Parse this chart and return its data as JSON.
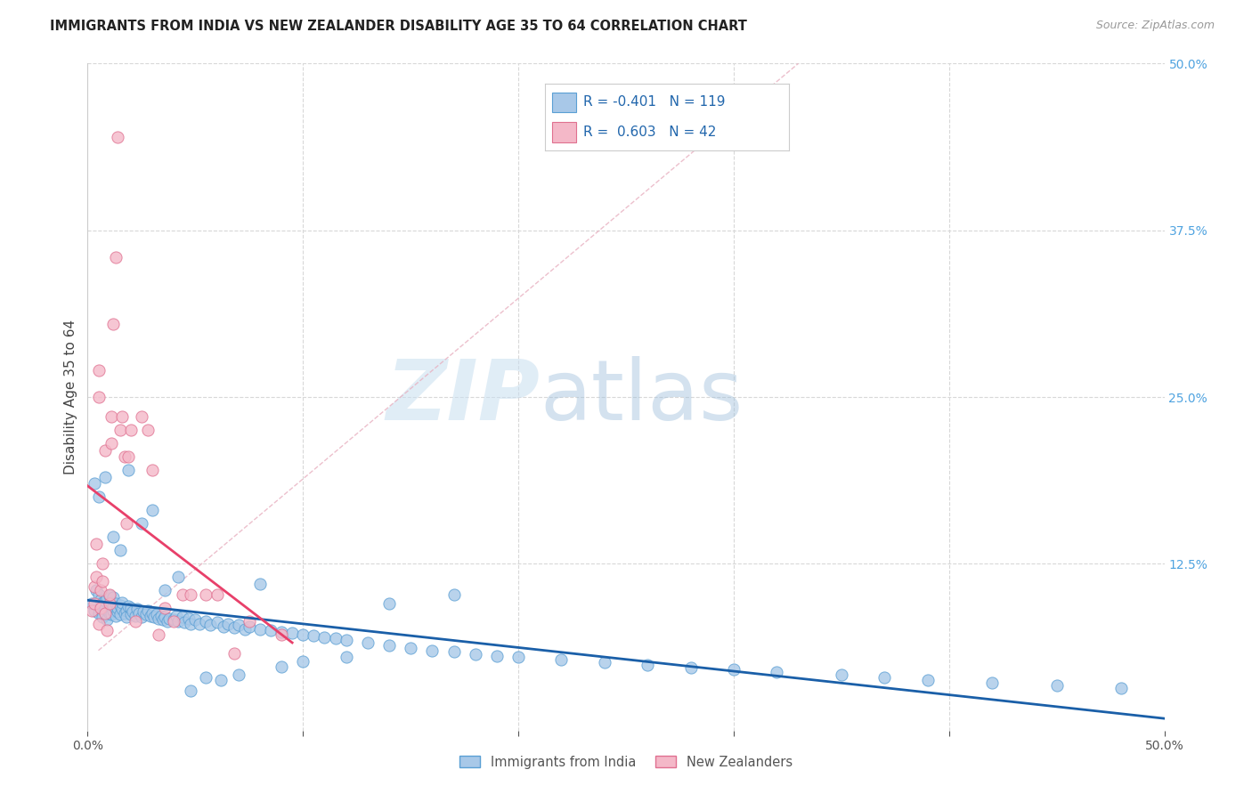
{
  "title": "IMMIGRANTS FROM INDIA VS NEW ZEALANDER DISABILITY AGE 35 TO 64 CORRELATION CHART",
  "source": "Source: ZipAtlas.com",
  "ylabel": "Disability Age 35 to 64",
  "xlim": [
    0.0,
    0.5
  ],
  "ylim": [
    0.0,
    0.5
  ],
  "yticks_right": [
    0.0,
    0.125,
    0.25,
    0.375,
    0.5
  ],
  "legend_blue_R": "-0.401",
  "legend_blue_N": "119",
  "legend_pink_R": "0.603",
  "legend_pink_N": "42",
  "blue_label": "Immigrants from India",
  "pink_label": "New Zealanders",
  "blue_color": "#a8c8e8",
  "blue_edge": "#5a9fd4",
  "pink_color": "#f4b8c8",
  "pink_edge": "#e07090",
  "blue_line_color": "#1a5fa8",
  "pink_line_color": "#e8406a",
  "dash_color": "#e8b0c0",
  "grid_color": "#d8d8d8",
  "title_color": "#222222",
  "right_axis_color": "#4fa3e0",
  "legend_text_color": "#2166ac",
  "blue_scatter_x": [
    0.002,
    0.003,
    0.004,
    0.005,
    0.005,
    0.006,
    0.006,
    0.007,
    0.007,
    0.008,
    0.008,
    0.009,
    0.009,
    0.01,
    0.01,
    0.01,
    0.011,
    0.011,
    0.012,
    0.012,
    0.012,
    0.013,
    0.013,
    0.014,
    0.014,
    0.015,
    0.015,
    0.016,
    0.016,
    0.017,
    0.018,
    0.018,
    0.019,
    0.02,
    0.02,
    0.021,
    0.022,
    0.023,
    0.024,
    0.025,
    0.026,
    0.027,
    0.028,
    0.029,
    0.03,
    0.031,
    0.032,
    0.033,
    0.034,
    0.035,
    0.036,
    0.037,
    0.038,
    0.04,
    0.041,
    0.042,
    0.044,
    0.045,
    0.047,
    0.048,
    0.05,
    0.052,
    0.055,
    0.057,
    0.06,
    0.063,
    0.065,
    0.068,
    0.07,
    0.073,
    0.075,
    0.08,
    0.085,
    0.09,
    0.095,
    0.1,
    0.105,
    0.11,
    0.115,
    0.12,
    0.13,
    0.14,
    0.15,
    0.16,
    0.17,
    0.18,
    0.19,
    0.2,
    0.22,
    0.24,
    0.26,
    0.28,
    0.3,
    0.32,
    0.35,
    0.37,
    0.39,
    0.42,
    0.45,
    0.48,
    0.003,
    0.005,
    0.008,
    0.012,
    0.015,
    0.019,
    0.025,
    0.03,
    0.036,
    0.042,
    0.048,
    0.055,
    0.062,
    0.07,
    0.08,
    0.09,
    0.1,
    0.12,
    0.14,
    0.17
  ],
  "blue_scatter_y": [
    0.095,
    0.09,
    0.105,
    0.088,
    0.102,
    0.092,
    0.098,
    0.085,
    0.096,
    0.091,
    0.097,
    0.083,
    0.099,
    0.088,
    0.094,
    0.101,
    0.087,
    0.096,
    0.09,
    0.093,
    0.1,
    0.086,
    0.095,
    0.089,
    0.092,
    0.094,
    0.087,
    0.091,
    0.096,
    0.088,
    0.09,
    0.085,
    0.093,
    0.087,
    0.092,
    0.089,
    0.086,
    0.091,
    0.088,
    0.085,
    0.089,
    0.087,
    0.09,
    0.086,
    0.088,
    0.085,
    0.087,
    0.084,
    0.086,
    0.083,
    0.085,
    0.082,
    0.084,
    0.083,
    0.086,
    0.082,
    0.085,
    0.081,
    0.084,
    0.08,
    0.083,
    0.08,
    0.082,
    0.079,
    0.081,
    0.078,
    0.08,
    0.077,
    0.079,
    0.076,
    0.078,
    0.076,
    0.075,
    0.074,
    0.073,
    0.072,
    0.071,
    0.07,
    0.069,
    0.068,
    0.066,
    0.064,
    0.062,
    0.06,
    0.059,
    0.057,
    0.056,
    0.055,
    0.053,
    0.051,
    0.049,
    0.047,
    0.046,
    0.044,
    0.042,
    0.04,
    0.038,
    0.036,
    0.034,
    0.032,
    0.185,
    0.175,
    0.19,
    0.145,
    0.135,
    0.195,
    0.155,
    0.165,
    0.105,
    0.115,
    0.03,
    0.04,
    0.038,
    0.042,
    0.11,
    0.048,
    0.052,
    0.055,
    0.095,
    0.102
  ],
  "pink_scatter_x": [
    0.002,
    0.003,
    0.003,
    0.004,
    0.004,
    0.005,
    0.005,
    0.005,
    0.006,
    0.006,
    0.007,
    0.007,
    0.008,
    0.008,
    0.009,
    0.01,
    0.01,
    0.011,
    0.011,
    0.012,
    0.013,
    0.014,
    0.015,
    0.016,
    0.017,
    0.018,
    0.019,
    0.02,
    0.022,
    0.025,
    0.028,
    0.03,
    0.033,
    0.036,
    0.04,
    0.044,
    0.048,
    0.055,
    0.06,
    0.068,
    0.075,
    0.09
  ],
  "pink_scatter_y": [
    0.09,
    0.095,
    0.108,
    0.115,
    0.14,
    0.25,
    0.27,
    0.08,
    0.092,
    0.105,
    0.112,
    0.125,
    0.21,
    0.088,
    0.075,
    0.095,
    0.102,
    0.215,
    0.235,
    0.305,
    0.355,
    0.445,
    0.225,
    0.235,
    0.205,
    0.155,
    0.205,
    0.225,
    0.082,
    0.235,
    0.225,
    0.195,
    0.072,
    0.092,
    0.082,
    0.102,
    0.102,
    0.102,
    0.102,
    0.058,
    0.082,
    0.072
  ]
}
